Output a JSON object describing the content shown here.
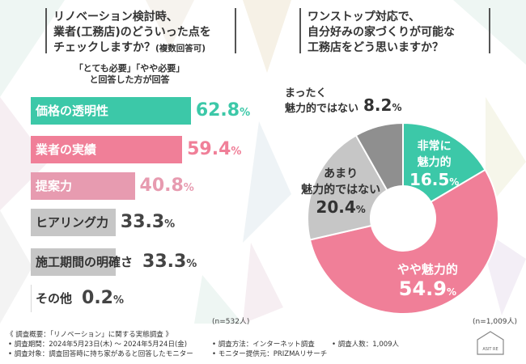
{
  "left_panel": {
    "question_line1": "リノベーション検討時、",
    "question_line2": "業者(工務店)のどういった点を",
    "question_line3": "チェックしますか？",
    "question_suffix": "(複数回答可)",
    "condition_line1": "「とても必要」「やや必要」",
    "condition_line2": "と回答した方が回答",
    "n_label": "(n=532人)"
  },
  "right_panel": {
    "question_line1": "ワンストップ対応で、",
    "question_line2": "自分好みの家づくりが可能な",
    "question_line3": "工務店をどう思いますか？",
    "n_label": "(n=1,009人)"
  },
  "colors": {
    "teal": "#3cc8a8",
    "pink": "#f07f98",
    "light_pink": "#e79bb0",
    "gray": "#c6c6c6",
    "dark_gray": "#8f8f8f",
    "light_gray": "#d8d8d8"
  },
  "chart_data": [
    {
      "type": "bar",
      "categories": [
        "価格の透明性",
        "業者の実績",
        "提案力",
        "ヒアリング力",
        "施工期間の明確さ",
        "その他"
      ],
      "values": [
        62.8,
        59.4,
        40.8,
        33.3,
        33.3,
        0.2
      ],
      "value_text": [
        "62.8",
        "59.4",
        "40.8",
        "33.3",
        "33.3",
        "0.2"
      ],
      "unit": "%"
    },
    {
      "type": "pie",
      "categories": [
        "非常に魅力的",
        "やや魅力的",
        "あまり魅力的ではない",
        "まったく魅力的ではない"
      ],
      "values": [
        16.5,
        54.9,
        20.4,
        8.2
      ],
      "value_text": [
        "16.5",
        "54.9",
        "20.4",
        "8.2"
      ],
      "unit": "%",
      "label_lines": [
        [
          "非常に",
          "魅力的"
        ],
        [
          "やや魅力的"
        ],
        [
          "あまり",
          "魅力的ではない"
        ],
        [
          "まったく",
          "魅力的ではない"
        ]
      ]
    }
  ],
  "footer": {
    "title": "《 調査概要：「リノベーション」に関する実態調査 》",
    "period": "• 調査期間：2024年5月23日(木) ～ 2024年5月24日(金)",
    "method": "• 調査方法：インターネット調査",
    "count": "• 調査人数：1,009人",
    "target": "• 調査対象：調査回答時に持ち家があると回答したモニター",
    "provider": "• モニター提供元：PRIZMAリサーチ",
    "logo_text": "ASIT RE"
  }
}
